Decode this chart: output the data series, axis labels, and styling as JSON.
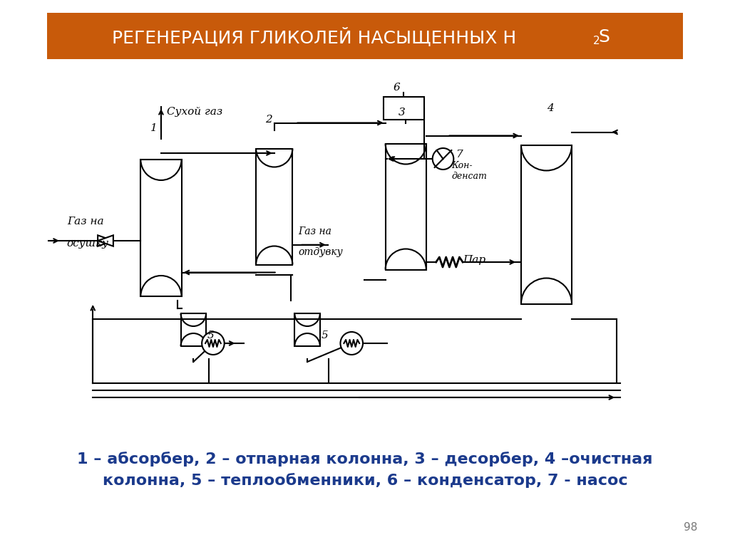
{
  "title_main": "РЕГЕНЕРАЦИЯ ГЛИКОЛЕЙ НАСЫЩЕННЫХ Н",
  "title_sub": "2",
  "title_end": "S",
  "title_bg": "#C85A0A",
  "title_color": "#FFFFFF",
  "caption_line1": "1 – абсорбер, 2 – отпарная колонна, 3 – десорбер, 4 –очистная",
  "caption_line2": "колонна, 5 – теплообменники, 6 – конденсатор, 7 - насос",
  "caption_color": "#1B3A8C",
  "page_num": "98",
  "bg_color": "#FFFFFF",
  "line_color": "#000000"
}
